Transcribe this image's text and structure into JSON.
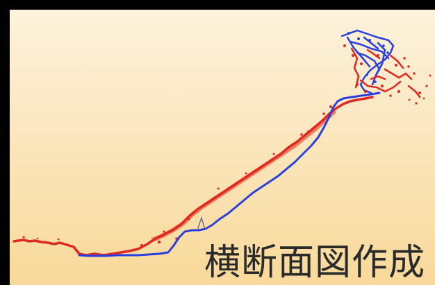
{
  "caption": "横断面図作成",
  "colors": {
    "frame": "#000000",
    "panel_top": "#fdf2dc",
    "panel_bottom": "#f9d99a",
    "series_red": "#e0281e",
    "series_blue": "#2a3ee0",
    "caption": "#2a2a2a"
  }
}
